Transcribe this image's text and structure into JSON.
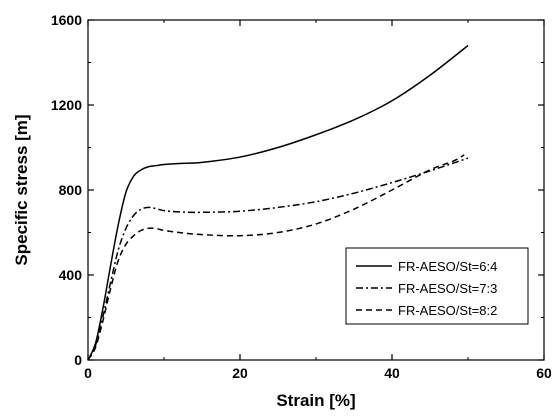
{
  "chart_data": {
    "type": "line",
    "xlabel": "Strain  [%]",
    "ylabel": "Specific stress  [m]",
    "xlim": [
      0,
      60
    ],
    "ylim": [
      0,
      1600
    ],
    "xticks": [
      0,
      20,
      40,
      60
    ],
    "yticks": [
      0,
      400,
      800,
      1200,
      1600
    ],
    "xtick_labels": [
      "0",
      "20",
      "40",
      "60"
    ],
    "ytick_labels": [
      "0",
      "400",
      "800",
      "1200",
      "1600"
    ],
    "grid": false,
    "legend_position": "lower-right",
    "series": [
      {
        "name": "FR-AESO/St=6:4",
        "style": "solid",
        "x": [
          0,
          1,
          2,
          3,
          4,
          5,
          6,
          7,
          8,
          9,
          10,
          12,
          15,
          20,
          25,
          30,
          35,
          40,
          45,
          50
        ],
        "y": [
          0,
          80,
          250,
          450,
          640,
          790,
          865,
          895,
          910,
          915,
          920,
          925,
          930,
          955,
          1000,
          1060,
          1130,
          1220,
          1340,
          1480
        ]
      },
      {
        "name": "FR-AESO/St=7:3",
        "style": "dashdot",
        "x": [
          0,
          1,
          2,
          3,
          4,
          5,
          6,
          7,
          8,
          9,
          10,
          12,
          15,
          20,
          25,
          30,
          35,
          40,
          45,
          50
        ],
        "y": [
          0,
          70,
          210,
          370,
          520,
          620,
          680,
          710,
          718,
          712,
          703,
          697,
          695,
          700,
          718,
          745,
          785,
          835,
          890,
          950
        ]
      },
      {
        "name": "FR-AESO/St=8:2",
        "style": "dashed",
        "x": [
          0,
          1,
          2,
          3,
          4,
          5,
          6,
          7,
          8,
          9,
          10,
          12,
          15,
          20,
          25,
          30,
          35,
          40,
          45,
          48,
          49.5
        ],
        "y": [
          0,
          60,
          190,
          340,
          470,
          545,
          585,
          610,
          620,
          618,
          610,
          600,
          590,
          585,
          600,
          640,
          710,
          800,
          895,
          935,
          965
        ]
      }
    ]
  }
}
